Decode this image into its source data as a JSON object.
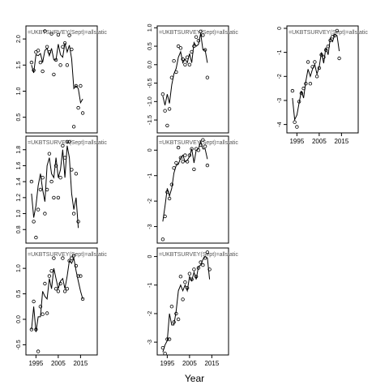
{
  "figure": {
    "xlabel": "Year"
  },
  "chart_data": [
    {
      "type": "scatter",
      "title": "=UKBTSURVEY(Sept)=allstatic",
      "x_ticks": [
        1995,
        2005,
        2015
      ],
      "y_ticks": [
        0.5,
        1.0,
        1.5,
        2.0
      ],
      "y_tick_labels": [
        "0.5",
        "1.0",
        "1.5",
        "2.0"
      ],
      "xlim": [
        1990.5,
        2022.5
      ],
      "ylim": [
        0.2,
        2.25
      ],
      "points": [
        [
          1993,
          1.55
        ],
        [
          1994,
          1.4
        ],
        [
          1995,
          1.75
        ],
        [
          1996,
          1.78
        ],
        [
          1997,
          1.55
        ],
        [
          1998,
          1.38
        ],
        [
          1999,
          2.15
        ],
        [
          2000,
          1.85
        ],
        [
          2001,
          1.75
        ],
        [
          2002,
          2.1
        ],
        [
          2003,
          1.32
        ],
        [
          2004,
          1.6
        ],
        [
          2005,
          2.08
        ],
        [
          2006,
          1.5
        ],
        [
          2007,
          1.85
        ],
        [
          2008,
          1.92
        ],
        [
          2009,
          1.5
        ],
        [
          2010,
          2.07
        ],
        [
          2011,
          1.8
        ],
        [
          2012,
          0.32
        ],
        [
          2013,
          1.1
        ],
        [
          2014,
          0.68
        ],
        [
          2015,
          1.1
        ],
        [
          2016,
          0.58
        ]
      ],
      "fit": [
        [
          1993,
          1.5
        ],
        [
          1994,
          1.35
        ],
        [
          1995,
          1.7
        ],
        [
          1996,
          1.68
        ],
        [
          1997,
          1.72
        ],
        [
          1998,
          1.55
        ],
        [
          1999,
          1.78
        ],
        [
          2000,
          1.82
        ],
        [
          2001,
          1.68
        ],
        [
          2002,
          1.82
        ],
        [
          2003,
          1.6
        ],
        [
          2004,
          1.6
        ],
        [
          2005,
          1.9
        ],
        [
          2006,
          1.7
        ],
        [
          2007,
          1.65
        ],
        [
          2008,
          1.92
        ],
        [
          2009,
          1.75
        ],
        [
          2010,
          1.88
        ],
        [
          2011,
          1.62
        ],
        [
          2012,
          1.05
        ],
        [
          2013,
          1.1
        ],
        [
          2014,
          1.05
        ],
        [
          2015,
          0.78
        ],
        [
          2016,
          0.85
        ]
      ]
    },
    {
      "type": "scatter",
      "title": "=UKBTSURVEY(Sept)=allstatic",
      "x_ticks": [
        1995,
        2005,
        2015
      ],
      "y_ticks": [
        -1.5,
        -1.0,
        -0.5,
        0.0,
        0.5,
        1.0
      ],
      "y_tick_labels": [
        "-1.5",
        "-1.0",
        "-0.5",
        "0.0",
        "0.5",
        "1.0"
      ],
      "xlim": [
        1990.5,
        2022.5
      ],
      "ylim": [
        -1.85,
        1.05
      ],
      "points": [
        [
          1993,
          -0.8
        ],
        [
          1994,
          -1.25
        ],
        [
          1995,
          -1.65
        ],
        [
          1996,
          -1.2
        ],
        [
          1997,
          -0.35
        ],
        [
          1998,
          0.1
        ],
        [
          1999,
          -0.2
        ],
        [
          2000,
          0.5
        ],
        [
          2001,
          0.45
        ],
        [
          2002,
          0.15
        ],
        [
          2003,
          0.0
        ],
        [
          2004,
          0.2
        ],
        [
          2005,
          0.0
        ],
        [
          2006,
          0.35
        ],
        [
          2007,
          0.5
        ],
        [
          2008,
          0.75
        ],
        [
          2009,
          0.65
        ],
        [
          2010,
          0.9
        ],
        [
          2011,
          0.8
        ],
        [
          2012,
          0.4
        ],
        [
          2013,
          -0.35
        ]
      ],
      "fit": [
        [
          1993,
          -0.85
        ],
        [
          1994,
          -1.1
        ],
        [
          1995,
          -0.8
        ],
        [
          1996,
          -1.05
        ],
        [
          1997,
          -0.55
        ],
        [
          1998,
          -0.25
        ],
        [
          1999,
          -0.1
        ],
        [
          2000,
          0.2
        ],
        [
          2001,
          0.35
        ],
        [
          2002,
          0.05
        ],
        [
          2003,
          0.15
        ],
        [
          2004,
          0.05
        ],
        [
          2005,
          0.3
        ],
        [
          2006,
          0.05
        ],
        [
          2007,
          0.6
        ],
        [
          2008,
          0.5
        ],
        [
          2009,
          0.55
        ],
        [
          2010,
          0.85
        ],
        [
          2011,
          0.4
        ],
        [
          2012,
          0.4
        ],
        [
          2013,
          0.05
        ]
      ]
    },
    {
      "type": "scatter",
      "title": "=UKBTSURVEY(Sept)=allstatic",
      "x_ticks": [
        1995,
        2005,
        2015
      ],
      "y_ticks": [
        -4,
        -3,
        -2,
        -1,
        0
      ],
      "y_tick_labels": [
        "-4",
        "-3",
        "-2",
        "-1",
        "0"
      ],
      "xlim": [
        1990.5,
        2022.5
      ],
      "ylim": [
        -4.35,
        0.1
      ],
      "points": [
        [
          1993,
          -2.6
        ],
        [
          1994,
          -3.9
        ],
        [
          1995,
          -4.1
        ],
        [
          1996,
          -3.05
        ],
        [
          1997,
          -2.7
        ],
        [
          1998,
          -2.5
        ],
        [
          1999,
          -2.3
        ],
        [
          2000,
          -1.4
        ],
        [
          2001,
          -2.3
        ],
        [
          2002,
          -1.6
        ],
        [
          2003,
          -1.4
        ],
        [
          2004,
          -2.0
        ],
        [
          2005,
          -1.65
        ],
        [
          2006,
          -1.1
        ],
        [
          2007,
          -1.2
        ],
        [
          2008,
          -0.9
        ],
        [
          2009,
          -0.75
        ],
        [
          2010,
          -0.5
        ],
        [
          2011,
          -0.35
        ],
        [
          2012,
          -0.3
        ],
        [
          2013,
          -0.1
        ],
        [
          2014,
          -1.25
        ]
      ],
      "fit": [
        [
          1993,
          -2.9
        ],
        [
          1994,
          -3.8
        ],
        [
          1995,
          -3.6
        ],
        [
          1996,
          -3.1
        ],
        [
          1997,
          -2.6
        ],
        [
          1998,
          -2.9
        ],
        [
          1999,
          -2.2
        ],
        [
          2000,
          -1.7
        ],
        [
          2001,
          -2.0
        ],
        [
          2002,
          -1.7
        ],
        [
          2003,
          -1.5
        ],
        [
          2004,
          -1.9
        ],
        [
          2005,
          -1.6
        ],
        [
          2006,
          -1.0
        ],
        [
          2007,
          -1.45
        ],
        [
          2008,
          -0.8
        ],
        [
          2009,
          -1.1
        ],
        [
          2010,
          -0.4
        ],
        [
          2011,
          -0.55
        ],
        [
          2012,
          -0.25
        ],
        [
          2013,
          -0.3
        ],
        [
          2014,
          -0.95
        ]
      ]
    },
    {
      "type": "scatter",
      "title": "=UKBTSURVEY(Sept)=allstatic",
      "x_ticks": [
        1995,
        2005,
        2015
      ],
      "y_ticks": [
        0.8,
        1.0,
        1.2,
        1.4,
        1.6,
        1.8
      ],
      "y_tick_labels": [
        "0.8",
        "1.0",
        "1.2",
        "1.4",
        "1.6",
        "1.8"
      ],
      "xlim": [
        1990.5,
        2022.5
      ],
      "ylim": [
        0.63,
        1.97
      ],
      "points": [
        [
          1993,
          1.4
        ],
        [
          1994,
          0.9
        ],
        [
          1995,
          0.7
        ],
        [
          1996,
          1.05
        ],
        [
          1997,
          1.3
        ],
        [
          1998,
          1.45
        ],
        [
          1999,
          1.0
        ],
        [
          2000,
          1.3
        ],
        [
          2001,
          1.75
        ],
        [
          2002,
          1.4
        ],
        [
          2003,
          1.2
        ],
        [
          2004,
          1.6
        ],
        [
          2005,
          1.2
        ],
        [
          2006,
          1.45
        ],
        [
          2007,
          1.85
        ],
        [
          2008,
          1.7
        ],
        [
          2009,
          1.9
        ],
        [
          2010,
          1.9
        ],
        [
          2011,
          1.55
        ],
        [
          2012,
          1.0
        ],
        [
          2013,
          1.5
        ],
        [
          2014,
          0.9
        ]
      ],
      "fit": [
        [
          1993,
          1.25
        ],
        [
          1994,
          0.95
        ],
        [
          1995,
          1.1
        ],
        [
          1996,
          1.35
        ],
        [
          1997,
          1.5
        ],
        [
          1998,
          1.3
        ],
        [
          1999,
          1.15
        ],
        [
          2000,
          1.6
        ],
        [
          2001,
          1.7
        ],
        [
          2002,
          1.5
        ],
        [
          2003,
          1.45
        ],
        [
          2004,
          1.7
        ],
        [
          2005,
          1.45
        ],
        [
          2006,
          1.55
        ],
        [
          2007,
          1.8
        ],
        [
          2008,
          1.45
        ],
        [
          2009,
          1.85
        ],
        [
          2010,
          1.7
        ],
        [
          2011,
          1.25
        ],
        [
          2012,
          1.05
        ],
        [
          2013,
          1.2
        ],
        [
          2014,
          0.82
        ]
      ]
    },
    {
      "type": "scatter",
      "title": "=UKBTSURVEY(Sept)=allstatic",
      "x_ticks": [
        1995,
        2005,
        2015
      ],
      "y_ticks": [
        -3,
        -2,
        -1,
        0
      ],
      "y_tick_labels": [
        "-3",
        "-2",
        "-1",
        "0"
      ],
      "xlim": [
        1990.5,
        2022.5
      ],
      "ylim": [
        -3.65,
        0.55
      ],
      "points": [
        [
          1993,
          -3.5
        ],
        [
          1994,
          -2.6
        ],
        [
          1995,
          -1.65
        ],
        [
          1996,
          -1.9
        ],
        [
          1997,
          -1.35
        ],
        [
          1998,
          -0.7
        ],
        [
          1999,
          -0.5
        ],
        [
          2000,
          0.1
        ],
        [
          2001,
          -0.3
        ],
        [
          2002,
          -0.45
        ],
        [
          2003,
          -0.2
        ],
        [
          2004,
          -0.45
        ],
        [
          2005,
          -0.2
        ],
        [
          2006,
          0.05
        ],
        [
          2007,
          -0.75
        ],
        [
          2008,
          0.05
        ],
        [
          2009,
          0.0
        ],
        [
          2010,
          0.2
        ],
        [
          2011,
          0.4
        ],
        [
          2012,
          0.15
        ],
        [
          2013,
          -0.6
        ]
      ],
      "fit": [
        [
          1993,
          -2.8
        ],
        [
          1994,
          -2.2
        ],
        [
          1995,
          -1.5
        ],
        [
          1996,
          -1.8
        ],
        [
          1997,
          -1.5
        ],
        [
          1998,
          -0.9
        ],
        [
          1999,
          -0.6
        ],
        [
          2000,
          -0.55
        ],
        [
          2001,
          -0.3
        ],
        [
          2002,
          -0.2
        ],
        [
          2003,
          -0.45
        ],
        [
          2004,
          -0.4
        ],
        [
          2005,
          -0.25
        ],
        [
          2006,
          0.05
        ],
        [
          2007,
          -0.5
        ],
        [
          2008,
          0.0
        ],
        [
          2009,
          0.05
        ],
        [
          2010,
          0.35
        ],
        [
          2011,
          0.05
        ],
        [
          2012,
          0.05
        ],
        [
          2013,
          -0.35
        ]
      ]
    },
    {
      "type": "scatter",
      "title": "=UKBTSURVEY(Sept)=allstatic",
      "x_ticks": [
        1995,
        2005,
        2015
      ],
      "y_ticks": [
        -0.5,
        0.0,
        0.5,
        1.0
      ],
      "y_tick_labels": [
        "-0.5",
        "0.0",
        "0.5",
        "1.0"
      ],
      "xlim": [
        1990.5,
        2022.5
      ],
      "ylim": [
        -0.7,
        1.4
      ],
      "points": [
        [
          1993,
          -0.2
        ],
        [
          1994,
          0.35
        ],
        [
          1995,
          -0.2
        ],
        [
          1996,
          -0.63
        ],
        [
          1997,
          0.25
        ],
        [
          1998,
          0.1
        ],
        [
          1999,
          0.7
        ],
        [
          2000,
          0.12
        ],
        [
          2001,
          0.85
        ],
        [
          2002,
          0.95
        ],
        [
          2003,
          1.2
        ],
        [
          2004,
          0.6
        ],
        [
          2005,
          0.55
        ],
        [
          2006,
          0.7
        ],
        [
          2007,
          1.2
        ],
        [
          2008,
          0.55
        ],
        [
          2009,
          0.6
        ],
        [
          2010,
          1.15
        ],
        [
          2011,
          1.2
        ],
        [
          2012,
          1.25
        ],
        [
          2013,
          1.05
        ],
        [
          2014,
          0.85
        ],
        [
          2015,
          0.85
        ],
        [
          2016,
          0.4
        ]
      ],
      "fit": [
        [
          1993,
          -0.2
        ],
        [
          1994,
          0.25
        ],
        [
          1995,
          -0.25
        ],
        [
          1996,
          0.05
        ],
        [
          1997,
          0.05
        ],
        [
          1998,
          0.55
        ],
        [
          1999,
          0.45
        ],
        [
          2000,
          0.4
        ],
        [
          2001,
          0.8
        ],
        [
          2002,
          0.6
        ],
        [
          2003,
          1.0
        ],
        [
          2004,
          0.8
        ],
        [
          2005,
          0.6
        ],
        [
          2006,
          0.75
        ],
        [
          2007,
          0.8
        ],
        [
          2008,
          0.6
        ],
        [
          2009,
          0.85
        ],
        [
          2010,
          1.15
        ],
        [
          2011,
          1.1
        ],
        [
          2012,
          1.2
        ],
        [
          2013,
          0.95
        ],
        [
          2014,
          0.75
        ],
        [
          2015,
          0.55
        ],
        [
          2016,
          0.4
        ]
      ]
    },
    {
      "type": "scatter",
      "title": "=UKBTSURVEY(Sept)=allstatic",
      "x_ticks": [
        1995,
        2005,
        2015
      ],
      "y_ticks": [
        -3,
        -2,
        -1,
        0
      ],
      "y_tick_labels": [
        "-3",
        "-2",
        "-1",
        "0"
      ],
      "xlim": [
        1990.5,
        2022.5
      ],
      "ylim": [
        -3.45,
        0.3
      ],
      "points": [
        [
          1993,
          -3.2
        ],
        [
          1994,
          -3.4
        ],
        [
          1995,
          -2.9
        ],
        [
          1996,
          -2.9
        ],
        [
          1997,
          -1.75
        ],
        [
          1998,
          -2.3
        ],
        [
          1999,
          -2.0
        ],
        [
          2000,
          -2.2
        ],
        [
          2001,
          -0.7
        ],
        [
          2002,
          -1.5
        ],
        [
          2003,
          -0.9
        ],
        [
          2004,
          -1.1
        ],
        [
          2005,
          -0.6
        ],
        [
          2006,
          -0.8
        ],
        [
          2007,
          -0.45
        ],
        [
          2008,
          -0.7
        ],
        [
          2009,
          -0.4
        ],
        [
          2010,
          -0.2
        ],
        [
          2011,
          -0.3
        ],
        [
          2012,
          -0.05
        ],
        [
          2013,
          0.15
        ],
        [
          2014,
          -0.45
        ]
      ],
      "fit": [
        [
          1993,
          -3.35
        ],
        [
          1994,
          -3.1
        ],
        [
          1995,
          -2.95
        ],
        [
          1996,
          -2.0
        ],
        [
          1997,
          -2.4
        ],
        [
          1998,
          -2.4
        ],
        [
          1999,
          -1.9
        ],
        [
          2000,
          -1.2
        ],
        [
          2001,
          -1.0
        ],
        [
          2002,
          -1.2
        ],
        [
          2003,
          -1.0
        ],
        [
          2004,
          -1.2
        ],
        [
          2005,
          -0.7
        ],
        [
          2006,
          -0.85
        ],
        [
          2007,
          -0.55
        ],
        [
          2008,
          -0.8
        ],
        [
          2009,
          -0.35
        ],
        [
          2010,
          -0.3
        ],
        [
          2011,
          -0.1
        ],
        [
          2012,
          0.0
        ],
        [
          2013,
          -0.05
        ],
        [
          2014,
          -0.8
        ]
      ]
    }
  ]
}
